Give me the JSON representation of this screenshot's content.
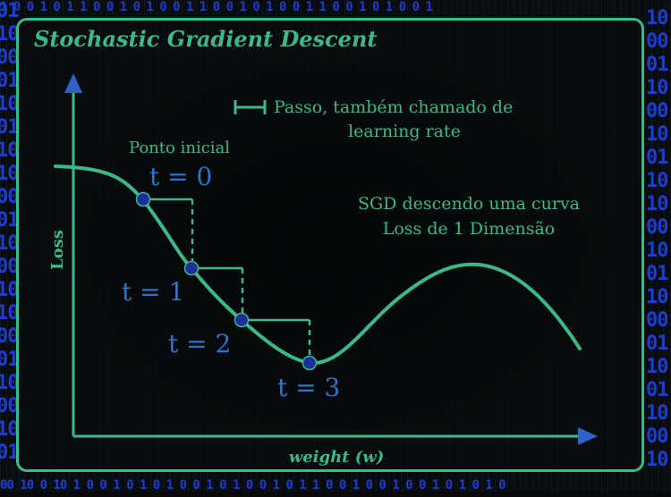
{
  "title": "Stochastic Gradient Descent",
  "y_axis_label": "Loss",
  "x_axis_label": "weight (w)",
  "step_legend": {
    "line1": "Passo, também chamado de",
    "line2": "learning rate"
  },
  "start_label": "Ponto inicial",
  "description": {
    "line1": "SGD descendo uma curva",
    "line2": "Loss de 1 Dimensão"
  },
  "steps": [
    {
      "label": "t = 0"
    },
    {
      "label": "t = 1"
    },
    {
      "label": "t = 2"
    },
    {
      "label": "t = 3"
    }
  ],
  "edge_bits": {
    "left": [
      "01",
      "10",
      "00",
      "01",
      "10",
      "01",
      "10",
      "10",
      "00",
      "01",
      "10",
      "00",
      "10",
      "10",
      "00",
      "01",
      "10",
      "00",
      "10",
      "01"
    ],
    "right": [
      "10",
      "00",
      "01",
      "10",
      "00",
      "10",
      "01",
      "10",
      "10",
      "00",
      "10",
      "01",
      "10",
      "00",
      "01",
      "10",
      "01",
      "10",
      "00",
      "10"
    ],
    "bottom": "00 10 0 10 1 0 0 1 0 1 0 1 0 0 1 0 1 0 0 1 0 1 1 0 0 1 0 0 1 0 0 1 0 1 0 1 0",
    "top": "1 0 0 1 0 1 1 0 0 1 0 1 0 0 1 1 0 0 1 0 1 0 0 1 1 0 0 1 0 1 0 0 1"
  },
  "colors": {
    "curve": "#3cb98a",
    "text": "#3cb98a",
    "axis": "#3cb98a",
    "arrow_head": "#2f62c8",
    "point_fill": "#1d2f9a",
    "step_label": "#2f73c9",
    "binary": "#1e3ccf"
  }
}
